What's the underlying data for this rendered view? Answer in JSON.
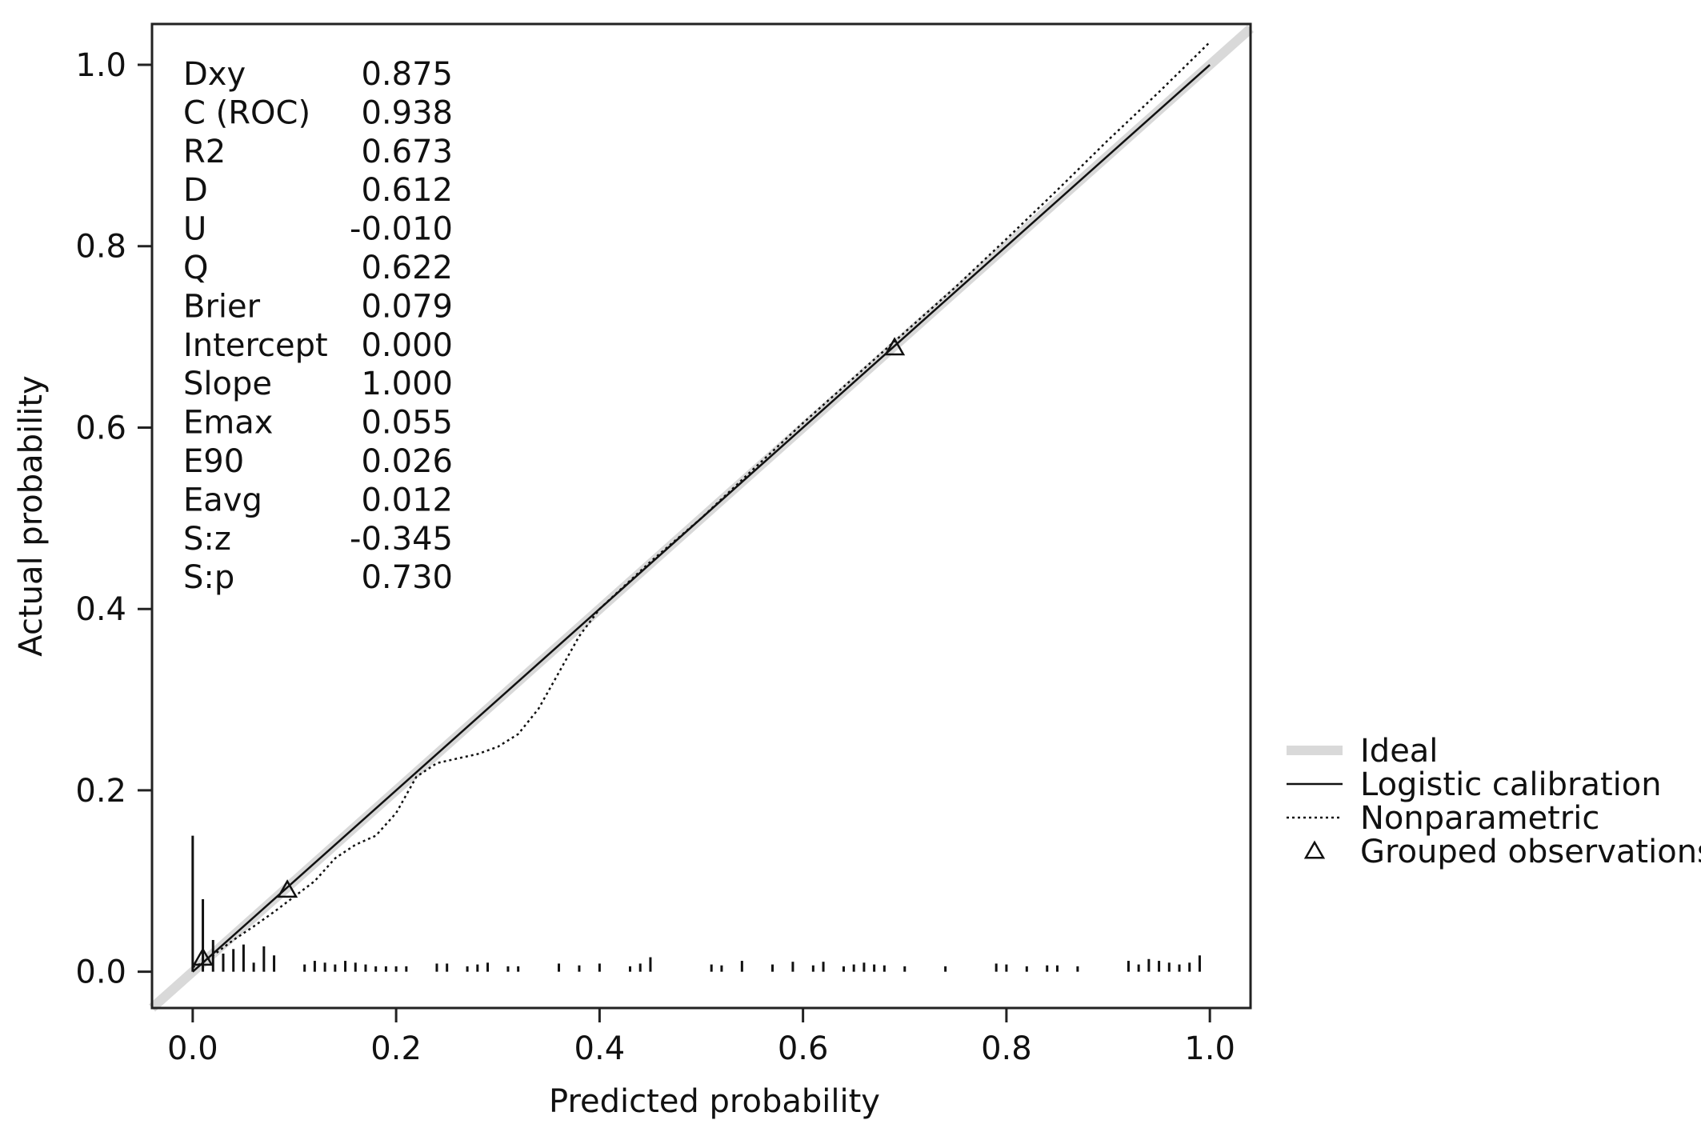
{
  "chart_data": {
    "type": "line",
    "xlabel": "Predicted probability",
    "ylabel": "Actual probability",
    "xlim": [
      -0.04,
      1.04
    ],
    "ylim": [
      -0.04,
      1.045
    ],
    "x_ticks": [
      "0.0",
      "0.2",
      "0.4",
      "0.6",
      "0.8",
      "1.0"
    ],
    "y_ticks": [
      "0.0",
      "0.2",
      "0.4",
      "0.6",
      "0.8",
      "1.0"
    ],
    "grid": false,
    "legend_position": "right",
    "legend": [
      "Ideal",
      "Logistic calibration",
      "Nonparametric",
      "Grouped observations"
    ],
    "stats": [
      {
        "label": "Dxy",
        "value": "0.875"
      },
      {
        "label": "C (ROC)",
        "value": "0.938"
      },
      {
        "label": "R2",
        "value": "0.673"
      },
      {
        "label": "D",
        "value": "0.612"
      },
      {
        "label": "U",
        "value": "-0.010"
      },
      {
        "label": "Q",
        "value": "0.622"
      },
      {
        "label": "Brier",
        "value": "0.079"
      },
      {
        "label": "Intercept",
        "value": "0.000"
      },
      {
        "label": "Slope",
        "value": "1.000"
      },
      {
        "label": "Emax",
        "value": "0.055"
      },
      {
        "label": "E90",
        "value": "0.026"
      },
      {
        "label": "Eavg",
        "value": "0.012"
      },
      {
        "label": "S:z",
        "value": "-0.345"
      },
      {
        "label": "S:p",
        "value": "0.730"
      }
    ],
    "series": [
      {
        "style": "ideal",
        "color": "#d9d9d9",
        "x": [
          -0.04,
          1.04
        ],
        "y": [
          -0.04,
          1.04
        ]
      },
      {
        "style": "logistic",
        "color": "#111111",
        "x": [
          0.0,
          1.0
        ],
        "y": [
          0.0,
          1.0
        ]
      },
      {
        "style": "nonparametric",
        "color": "#111111",
        "x": [
          0.0,
          0.01,
          0.02,
          0.04,
          0.06,
          0.08,
          0.1,
          0.12,
          0.14,
          0.16,
          0.18,
          0.2,
          0.22,
          0.24,
          0.26,
          0.28,
          0.3,
          0.32,
          0.34,
          0.36,
          0.38,
          0.4,
          0.45,
          0.5,
          0.55,
          0.6,
          0.65,
          0.69,
          0.75,
          0.8,
          0.85,
          0.9,
          0.95,
          1.0
        ],
        "y": [
          0.005,
          0.01,
          0.018,
          0.035,
          0.05,
          0.066,
          0.083,
          0.1,
          0.125,
          0.14,
          0.15,
          0.175,
          0.215,
          0.23,
          0.235,
          0.24,
          0.248,
          0.262,
          0.29,
          0.33,
          0.37,
          0.4,
          0.452,
          0.5,
          0.553,
          0.605,
          0.655,
          0.695,
          0.755,
          0.808,
          0.862,
          0.917,
          0.97,
          1.025
        ]
      },
      {
        "style": "grouped",
        "color": "#111111",
        "x": [
          0.01,
          0.093,
          0.69
        ],
        "y": [
          0.015,
          0.09,
          0.688
        ]
      }
    ],
    "rug": {
      "x": [
        0.0,
        0.01,
        0.02,
        0.03,
        0.04,
        0.05,
        0.06,
        0.07,
        0.08,
        0.11,
        0.12,
        0.13,
        0.14,
        0.15,
        0.16,
        0.17,
        0.18,
        0.19,
        0.2,
        0.21,
        0.24,
        0.25,
        0.27,
        0.28,
        0.29,
        0.31,
        0.32,
        0.36,
        0.38,
        0.4,
        0.43,
        0.44,
        0.45,
        0.51,
        0.52,
        0.54,
        0.57,
        0.59,
        0.61,
        0.62,
        0.64,
        0.65,
        0.66,
        0.67,
        0.68,
        0.7,
        0.74,
        0.79,
        0.8,
        0.82,
        0.84,
        0.85,
        0.87,
        0.92,
        0.93,
        0.94,
        0.95,
        0.96,
        0.97,
        0.98,
        0.99
      ],
      "h": [
        0.15,
        0.08,
        0.035,
        0.02,
        0.025,
        0.03,
        0.01,
        0.028,
        0.018,
        0.008,
        0.012,
        0.01,
        0.008,
        0.012,
        0.01,
        0.008,
        0.006,
        0.006,
        0.006,
        0.006,
        0.009,
        0.009,
        0.006,
        0.008,
        0.01,
        0.006,
        0.006,
        0.009,
        0.007,
        0.009,
        0.006,
        0.009,
        0.016,
        0.008,
        0.007,
        0.012,
        0.008,
        0.011,
        0.007,
        0.011,
        0.006,
        0.008,
        0.01,
        0.008,
        0.007,
        0.006,
        0.006,
        0.009,
        0.008,
        0.006,
        0.007,
        0.007,
        0.006,
        0.012,
        0.008,
        0.014,
        0.012,
        0.01,
        0.008,
        0.01,
        0.018
      ]
    }
  }
}
